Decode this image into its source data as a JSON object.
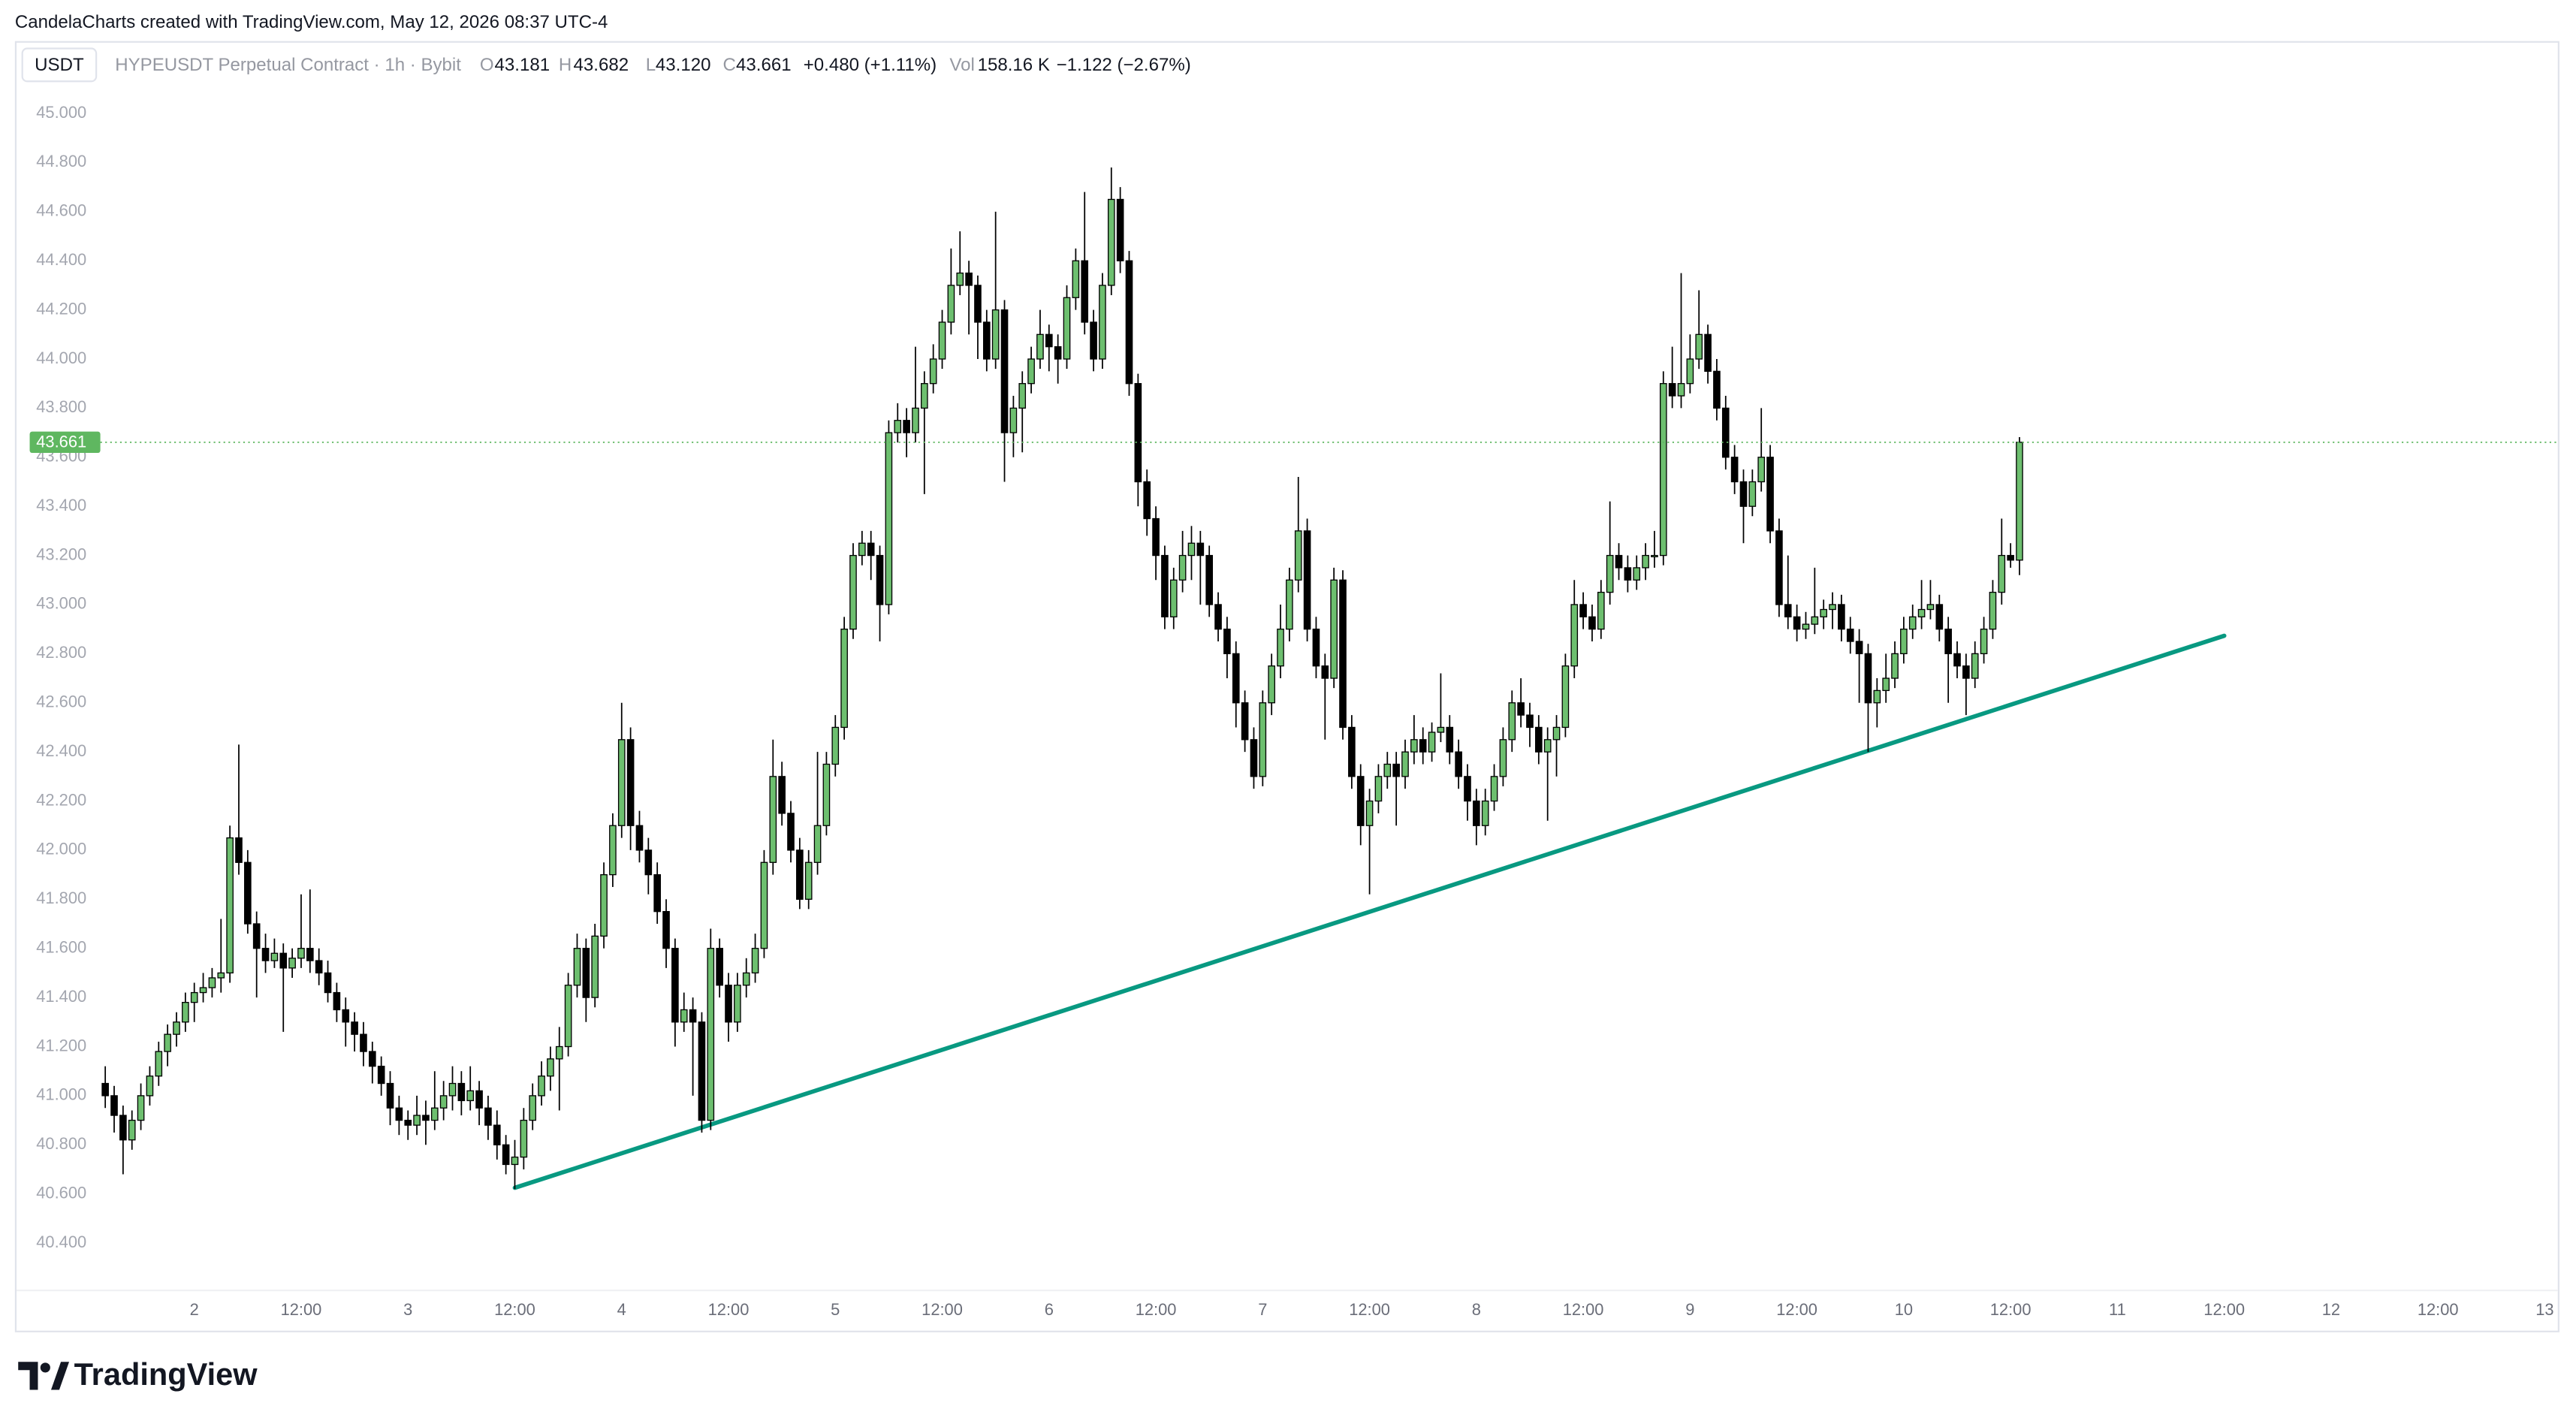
{
  "header": {
    "attribution": "CandelaCharts created with TradingView.com, May 12, 2026 08:37 UTC-4",
    "symbol_button": "USDT",
    "instrument": "HYPEUSDT Perpetual Contract · 1h · Bybit",
    "ohlc": [
      {
        "key": "O",
        "value": "43.181"
      },
      {
        "key": "H",
        "value": "43.682"
      },
      {
        "key": "L",
        "value": "43.120"
      },
      {
        "key": "C",
        "value": "43.661"
      }
    ],
    "change": "+0.480 (+1.11%)",
    "volume_label": "Vol",
    "volume": "158.16 K",
    "volume_change": "−1.122 (−2.67%)"
  },
  "chart_data": {
    "type": "candlestick",
    "up_color": "#6dbf6f",
    "down_color": "#000000",
    "last_price_color": "#5fb760",
    "ylim": [
      40.244,
      45.094
    ],
    "yticks": [
      {
        "value": 40.4,
        "label": "40.400"
      },
      {
        "value": 40.6,
        "label": "40.600"
      },
      {
        "value": 40.8,
        "label": "40.800"
      },
      {
        "value": 41,
        "label": "41.000"
      },
      {
        "value": 41.2,
        "label": "41.200"
      },
      {
        "value": 41.4,
        "label": "41.400"
      },
      {
        "value": 41.6,
        "label": "41.600"
      },
      {
        "value": 41.8,
        "label": "41.800"
      },
      {
        "value": 42,
        "label": "42.000"
      },
      {
        "value": 42.2,
        "label": "42.200"
      },
      {
        "value": 42.4,
        "label": "42.400"
      },
      {
        "value": 42.6,
        "label": "42.600"
      },
      {
        "value": 42.8,
        "label": "42.800"
      },
      {
        "value": 43,
        "label": "43.000"
      },
      {
        "value": 43.2,
        "label": "43.200"
      },
      {
        "value": 43.4,
        "label": "43.400"
      },
      {
        "value": 43.6,
        "label": "43.600"
      },
      {
        "value": 43.8,
        "label": "43.800"
      },
      {
        "value": 44,
        "label": "44.000"
      },
      {
        "value": 44.2,
        "label": "44.200"
      },
      {
        "value": 44.4,
        "label": "44.400"
      },
      {
        "value": 44.6,
        "label": "44.600"
      },
      {
        "value": 44.8,
        "label": "44.800"
      },
      {
        "value": 45,
        "label": "45.000"
      }
    ],
    "grid": false,
    "x_tick_labels": [
      "2",
      "12:00",
      "3",
      "12:00",
      "4",
      "12:00",
      "5",
      "12:00",
      "6",
      "12:00",
      "7",
      "12:00",
      "8",
      "12:00",
      "9",
      "12:00",
      "10",
      "12:00",
      "11",
      "12:00",
      "12",
      "12:00",
      "13"
    ],
    "trend_line": {
      "color": "#089981",
      "start": {
        "bar": 46,
        "price": 40.625
      },
      "end": {
        "bar": 238,
        "price": 42.873
      }
    },
    "candles": [
      [
        41.05,
        41.12,
        40.95,
        41.0
      ],
      [
        41.0,
        41.04,
        40.85,
        40.92
      ],
      [
        40.92,
        40.96,
        40.68,
        40.82
      ],
      [
        40.82,
        40.94,
        40.78,
        40.9
      ],
      [
        40.9,
        41.05,
        40.86,
        41.0
      ],
      [
        41.0,
        41.12,
        40.96,
        41.08
      ],
      [
        41.08,
        41.22,
        41.04,
        41.18
      ],
      [
        41.18,
        41.29,
        41.12,
        41.25
      ],
      [
        41.25,
        41.34,
        41.2,
        41.3
      ],
      [
        41.3,
        41.42,
        41.26,
        41.38
      ],
      [
        41.38,
        41.46,
        41.3,
        41.42
      ],
      [
        41.42,
        41.5,
        41.38,
        41.44
      ],
      [
        41.44,
        41.52,
        41.4,
        41.48
      ],
      [
        41.48,
        41.72,
        41.42,
        41.5
      ],
      [
        41.5,
        42.1,
        41.46,
        42.05
      ],
      [
        42.05,
        42.43,
        41.9,
        41.95
      ],
      [
        41.95,
        42.0,
        41.66,
        41.7
      ],
      [
        41.7,
        41.75,
        41.4,
        41.6
      ],
      [
        41.6,
        41.66,
        41.5,
        41.55
      ],
      [
        41.55,
        41.64,
        41.52,
        41.58
      ],
      [
        41.58,
        41.62,
        41.26,
        41.52
      ],
      [
        41.52,
        41.6,
        41.48,
        41.56
      ],
      [
        41.56,
        41.82,
        41.52,
        41.6
      ],
      [
        41.6,
        41.84,
        41.5,
        41.55
      ],
      [
        41.55,
        41.6,
        41.45,
        41.5
      ],
      [
        41.5,
        41.55,
        41.38,
        41.42
      ],
      [
        41.42,
        41.46,
        41.3,
        41.35
      ],
      [
        41.35,
        41.4,
        41.2,
        41.3
      ],
      [
        41.3,
        41.34,
        41.18,
        41.25
      ],
      [
        41.25,
        41.3,
        41.12,
        41.18
      ],
      [
        41.18,
        41.22,
        41.05,
        41.12
      ],
      [
        41.12,
        41.16,
        41.0,
        41.05
      ],
      [
        41.05,
        41.1,
        40.88,
        40.95
      ],
      [
        40.95,
        41.0,
        40.84,
        40.9
      ],
      [
        40.9,
        40.94,
        40.82,
        40.88
      ],
      [
        40.88,
        41.0,
        40.84,
        40.92
      ],
      [
        40.92,
        40.98,
        40.8,
        40.9
      ],
      [
        40.9,
        41.1,
        40.86,
        40.95
      ],
      [
        40.95,
        41.06,
        40.9,
        41.0
      ],
      [
        41.0,
        41.12,
        40.94,
        41.05
      ],
      [
        41.05,
        41.1,
        40.92,
        40.98
      ],
      [
        40.98,
        41.12,
        40.94,
        41.02
      ],
      [
        41.02,
        41.06,
        40.88,
        40.95
      ],
      [
        40.95,
        41.0,
        40.82,
        40.88
      ],
      [
        40.88,
        40.94,
        40.74,
        40.8
      ],
      [
        40.8,
        40.84,
        40.68,
        40.72
      ],
      [
        40.72,
        40.82,
        40.62,
        40.75
      ],
      [
        40.75,
        40.95,
        40.7,
        40.9
      ],
      [
        40.9,
        41.05,
        40.86,
        41.0
      ],
      [
        41.0,
        41.14,
        40.96,
        41.08
      ],
      [
        41.08,
        41.2,
        41.02,
        41.15
      ],
      [
        41.15,
        41.28,
        40.94,
        41.2
      ],
      [
        41.2,
        41.5,
        41.16,
        41.45
      ],
      [
        41.45,
        41.66,
        41.4,
        41.6
      ],
      [
        41.6,
        41.64,
        41.3,
        41.4
      ],
      [
        41.4,
        41.7,
        41.36,
        41.65
      ],
      [
        41.65,
        41.95,
        41.6,
        41.9
      ],
      [
        41.9,
        42.15,
        41.85,
        42.1
      ],
      [
        42.1,
        42.6,
        42.05,
        42.45
      ],
      [
        42.45,
        42.5,
        42.0,
        42.1
      ],
      [
        42.1,
        42.16,
        41.95,
        42.0
      ],
      [
        42.0,
        42.05,
        41.82,
        41.9
      ],
      [
        41.9,
        41.95,
        41.7,
        41.75
      ],
      [
        41.75,
        41.8,
        41.52,
        41.6
      ],
      [
        41.6,
        41.64,
        41.2,
        41.3
      ],
      [
        41.3,
        41.42,
        41.26,
        41.35
      ],
      [
        41.35,
        41.4,
        41.0,
        41.3
      ],
      [
        41.3,
        41.34,
        40.85,
        40.9
      ],
      [
        40.9,
        41.68,
        40.86,
        41.6
      ],
      [
        41.6,
        41.64,
        41.4,
        41.45
      ],
      [
        41.45,
        41.5,
        41.22,
        41.3
      ],
      [
        41.3,
        41.5,
        41.26,
        41.45
      ],
      [
        41.45,
        41.56,
        41.4,
        41.5
      ],
      [
        41.5,
        41.66,
        41.46,
        41.6
      ],
      [
        41.6,
        42.0,
        41.56,
        41.95
      ],
      [
        41.95,
        42.45,
        41.9,
        42.3
      ],
      [
        42.3,
        42.36,
        42.1,
        42.15
      ],
      [
        42.15,
        42.2,
        41.95,
        42.0
      ],
      [
        42.0,
        42.05,
        41.76,
        41.8
      ],
      [
        41.8,
        42.0,
        41.76,
        41.95
      ],
      [
        41.95,
        42.4,
        41.9,
        42.1
      ],
      [
        42.1,
        42.4,
        42.06,
        42.35
      ],
      [
        42.35,
        42.55,
        42.3,
        42.5
      ],
      [
        42.5,
        42.95,
        42.45,
        42.9
      ],
      [
        42.9,
        43.25,
        42.86,
        43.2
      ],
      [
        43.2,
        43.3,
        43.16,
        43.25
      ],
      [
        43.25,
        43.3,
        43.1,
        43.2
      ],
      [
        43.2,
        43.24,
        42.85,
        43.0
      ],
      [
        43.0,
        43.75,
        42.96,
        43.7
      ],
      [
        43.7,
        43.82,
        43.66,
        43.75
      ],
      [
        43.75,
        43.8,
        43.6,
        43.7
      ],
      [
        43.7,
        44.05,
        43.66,
        43.8
      ],
      [
        43.8,
        43.95,
        43.45,
        43.9
      ],
      [
        43.9,
        44.06,
        43.86,
        44.0
      ],
      [
        44.0,
        44.2,
        43.96,
        44.15
      ],
      [
        44.15,
        44.45,
        44.1,
        44.3
      ],
      [
        44.3,
        44.52,
        44.26,
        44.35
      ],
      [
        44.35,
        44.4,
        44.1,
        44.3
      ],
      [
        44.3,
        44.34,
        44.0,
        44.15
      ],
      [
        44.15,
        44.2,
        43.95,
        44.0
      ],
      [
        44.0,
        44.6,
        43.96,
        44.2
      ],
      [
        44.2,
        44.24,
        43.5,
        43.7
      ],
      [
        43.7,
        43.85,
        43.6,
        43.8
      ],
      [
        43.8,
        43.95,
        43.62,
        43.9
      ],
      [
        43.9,
        44.05,
        43.86,
        44.0
      ],
      [
        44.0,
        44.2,
        43.96,
        44.1
      ],
      [
        44.1,
        44.14,
        43.95,
        44.05
      ],
      [
        44.05,
        44.1,
        43.9,
        44.0
      ],
      [
        44.0,
        44.3,
        43.96,
        44.25
      ],
      [
        44.25,
        44.45,
        44.2,
        44.4
      ],
      [
        44.4,
        44.68,
        44.1,
        44.15
      ],
      [
        44.15,
        44.2,
        43.95,
        44.0
      ],
      [
        44.0,
        44.35,
        43.96,
        44.3
      ],
      [
        44.3,
        44.78,
        44.26,
        44.65
      ],
      [
        44.65,
        44.7,
        44.35,
        44.4
      ],
      [
        44.4,
        44.44,
        43.85,
        43.9
      ],
      [
        43.9,
        43.94,
        43.4,
        43.5
      ],
      [
        43.5,
        43.55,
        43.28,
        43.35
      ],
      [
        43.35,
        43.4,
        43.1,
        43.2
      ],
      [
        43.2,
        43.24,
        42.9,
        42.95
      ],
      [
        42.95,
        43.15,
        42.9,
        43.1
      ],
      [
        43.1,
        43.3,
        43.05,
        43.2
      ],
      [
        43.2,
        43.32,
        43.1,
        43.25
      ],
      [
        43.25,
        43.3,
        43.0,
        43.2
      ],
      [
        43.2,
        43.24,
        42.95,
        43.0
      ],
      [
        43.0,
        43.05,
        42.85,
        42.9
      ],
      [
        42.9,
        42.95,
        42.7,
        42.8
      ],
      [
        42.8,
        42.85,
        42.5,
        42.6
      ],
      [
        42.6,
        42.65,
        42.4,
        42.45
      ],
      [
        42.45,
        42.5,
        42.25,
        42.3
      ],
      [
        42.3,
        42.65,
        42.26,
        42.6
      ],
      [
        42.6,
        42.8,
        42.55,
        42.75
      ],
      [
        42.75,
        43.0,
        42.7,
        42.9
      ],
      [
        42.9,
        43.15,
        42.85,
        43.1
      ],
      [
        43.1,
        43.52,
        43.05,
        43.3
      ],
      [
        43.3,
        43.35,
        42.85,
        42.9
      ],
      [
        42.9,
        42.95,
        42.7,
        42.75
      ],
      [
        42.75,
        42.8,
        42.45,
        42.7
      ],
      [
        42.7,
        43.15,
        42.66,
        43.1
      ],
      [
        43.1,
        43.14,
        42.45,
        42.5
      ],
      [
        42.5,
        42.55,
        42.25,
        42.3
      ],
      [
        42.3,
        42.35,
        42.02,
        42.1
      ],
      [
        42.1,
        42.25,
        41.82,
        42.2
      ],
      [
        42.2,
        42.35,
        42.15,
        42.3
      ],
      [
        42.3,
        42.4,
        42.25,
        42.35
      ],
      [
        42.35,
        42.4,
        42.1,
        42.3
      ],
      [
        42.3,
        42.45,
        42.25,
        42.4
      ],
      [
        42.4,
        42.55,
        42.35,
        42.45
      ],
      [
        42.45,
        42.5,
        42.35,
        42.4
      ],
      [
        42.4,
        42.52,
        42.36,
        42.48
      ],
      [
        42.48,
        42.72,
        42.44,
        42.5
      ],
      [
        42.5,
        42.55,
        42.35,
        42.4
      ],
      [
        42.4,
        42.45,
        42.25,
        42.3
      ],
      [
        42.3,
        42.35,
        42.12,
        42.2
      ],
      [
        42.2,
        42.25,
        42.02,
        42.1
      ],
      [
        42.1,
        42.25,
        42.06,
        42.2
      ],
      [
        42.2,
        42.35,
        42.16,
        42.3
      ],
      [
        42.3,
        42.5,
        42.26,
        42.45
      ],
      [
        42.45,
        42.65,
        42.4,
        42.6
      ],
      [
        42.6,
        42.7,
        42.5,
        42.55
      ],
      [
        42.55,
        42.6,
        42.42,
        42.5
      ],
      [
        42.5,
        42.55,
        42.35,
        42.4
      ],
      [
        42.4,
        42.5,
        42.12,
        42.45
      ],
      [
        42.45,
        42.55,
        42.3,
        42.5
      ],
      [
        42.5,
        42.8,
        42.46,
        42.75
      ],
      [
        42.75,
        43.1,
        42.7,
        43.0
      ],
      [
        43.0,
        43.05,
        42.9,
        42.95
      ],
      [
        42.95,
        43.0,
        42.85,
        42.9
      ],
      [
        42.9,
        43.1,
        42.86,
        43.05
      ],
      [
        43.05,
        43.42,
        43.0,
        43.2
      ],
      [
        43.2,
        43.25,
        43.1,
        43.15
      ],
      [
        43.15,
        43.2,
        43.05,
        43.1
      ],
      [
        43.1,
        43.2,
        43.06,
        43.15
      ],
      [
        43.15,
        43.25,
        43.1,
        43.2
      ],
      [
        43.2,
        43.3,
        43.15,
        43.2
      ],
      [
        43.2,
        43.95,
        43.16,
        43.9
      ],
      [
        43.9,
        44.05,
        43.8,
        43.85
      ],
      [
        43.85,
        44.35,
        43.8,
        43.9
      ],
      [
        43.9,
        44.1,
        43.86,
        44.0
      ],
      [
        44.0,
        44.28,
        43.96,
        44.1
      ],
      [
        44.1,
        44.14,
        43.9,
        43.95
      ],
      [
        43.95,
        44.0,
        43.75,
        43.8
      ],
      [
        43.8,
        43.85,
        43.55,
        43.6
      ],
      [
        43.6,
        43.65,
        43.45,
        43.5
      ],
      [
        43.5,
        43.55,
        43.25,
        43.4
      ],
      [
        43.4,
        43.55,
        43.36,
        43.5
      ],
      [
        43.5,
        43.8,
        43.46,
        43.6
      ],
      [
        43.6,
        43.65,
        43.25,
        43.3
      ],
      [
        43.3,
        43.35,
        42.95,
        43.0
      ],
      [
        43.0,
        43.2,
        42.9,
        42.95
      ],
      [
        42.95,
        43.0,
        42.85,
        42.9
      ],
      [
        42.9,
        42.97,
        42.86,
        42.92
      ],
      [
        42.92,
        43.15,
        42.88,
        42.95
      ],
      [
        42.95,
        43.02,
        42.9,
        42.98
      ],
      [
        42.98,
        43.05,
        42.9,
        43.0
      ],
      [
        43.0,
        43.04,
        42.85,
        42.9
      ],
      [
        42.9,
        42.95,
        42.8,
        42.85
      ],
      [
        42.85,
        42.9,
        42.6,
        42.8
      ],
      [
        42.8,
        42.84,
        42.4,
        42.6
      ],
      [
        42.6,
        42.7,
        42.5,
        42.65
      ],
      [
        42.65,
        42.8,
        42.6,
        42.7
      ],
      [
        42.7,
        42.85,
        42.66,
        42.8
      ],
      [
        42.8,
        42.95,
        42.76,
        42.9
      ],
      [
        42.9,
        43.0,
        42.86,
        42.95
      ],
      [
        42.95,
        43.1,
        42.9,
        42.98
      ],
      [
        42.98,
        43.1,
        42.94,
        43.0
      ],
      [
        43.0,
        43.04,
        42.85,
        42.9
      ],
      [
        42.9,
        42.95,
        42.6,
        42.8
      ],
      [
        42.8,
        42.85,
        42.7,
        42.75
      ],
      [
        42.75,
        42.8,
        42.55,
        42.7
      ],
      [
        42.7,
        42.85,
        42.66,
        42.8
      ],
      [
        42.8,
        42.95,
        42.76,
        42.9
      ],
      [
        42.9,
        43.1,
        42.86,
        43.05
      ],
      [
        43.05,
        43.35,
        43.0,
        43.2
      ],
      [
        43.2,
        43.25,
        43.15,
        43.181
      ],
      [
        43.181,
        43.682,
        43.12,
        43.661
      ]
    ]
  },
  "footer": {
    "brand": "TradingView"
  }
}
